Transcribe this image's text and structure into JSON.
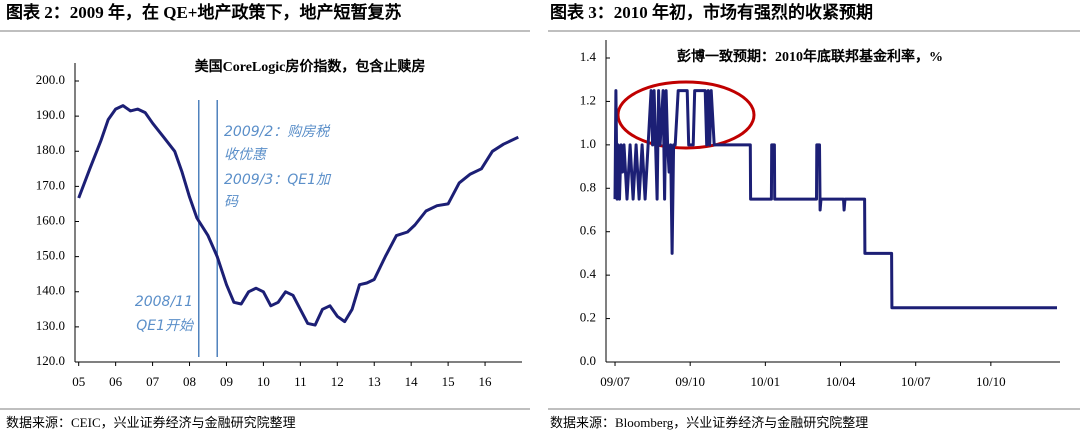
{
  "chart_data": [
    {
      "type": "line",
      "header": "图表 2：2009 年，在 QE+地产政策下，地产短暂复苏",
      "title": "美国CoreLogic房价指数，包含止赎房",
      "source": "数据来源：CEIC，兴业证券经济与金融研究院整理",
      "color": "#1c1f75",
      "x": [
        2005.0,
        2005.3,
        2005.6,
        2005.8,
        2006.0,
        2006.2,
        2006.4,
        2006.6,
        2006.8,
        2007.0,
        2007.3,
        2007.6,
        2007.8,
        2008.0,
        2008.2,
        2008.5,
        2008.75,
        2009.0,
        2009.2,
        2009.4,
        2009.6,
        2009.8,
        2010.0,
        2010.2,
        2010.4,
        2010.6,
        2010.8,
        2011.0,
        2011.2,
        2011.4,
        2011.6,
        2011.8,
        2012.0,
        2012.2,
        2012.4,
        2012.6,
        2012.8,
        2013.0,
        2013.3,
        2013.6,
        2013.9,
        2014.1,
        2014.4,
        2014.7,
        2015.0,
        2015.3,
        2015.6,
        2015.9,
        2016.2,
        2016.5,
        2016.9
      ],
      "values": [
        166.7,
        175,
        183,
        189,
        192,
        193,
        191.5,
        192,
        191,
        188,
        184,
        180,
        174,
        167,
        161,
        156,
        150,
        142,
        137,
        136.5,
        140,
        141,
        140,
        136,
        137,
        140,
        139,
        135,
        131,
        130.5,
        135,
        136,
        133,
        131.5,
        135,
        142,
        142.5,
        143.5,
        150,
        156,
        157,
        159,
        163,
        164.5,
        165,
        171,
        173.5,
        175,
        180,
        182,
        184
      ],
      "xlim": [
        2004.9,
        2017
      ],
      "xticks": [
        {
          "value": 2005,
          "label": "05"
        },
        {
          "value": 2006,
          "label": "06"
        },
        {
          "value": 2007,
          "label": "07"
        },
        {
          "value": 2008,
          "label": "08"
        },
        {
          "value": 2009,
          "label": "09"
        },
        {
          "value": 2010,
          "label": "10"
        },
        {
          "value": 2011,
          "label": "11"
        },
        {
          "value": 2012,
          "label": "12"
        },
        {
          "value": 2013,
          "label": "13"
        },
        {
          "value": 2014,
          "label": "14"
        },
        {
          "value": 2015,
          "label": "15"
        },
        {
          "value": 2016,
          "label": "16"
        }
      ],
      "ylim": [
        120,
        200
      ],
      "yticks": [
        {
          "value": 120,
          "label": "120.0"
        },
        {
          "value": 130,
          "label": "130.0"
        },
        {
          "value": 140,
          "label": "140.0"
        },
        {
          "value": 150,
          "label": "150.0"
        },
        {
          "value": 160,
          "label": "160.0"
        },
        {
          "value": 170,
          "label": "170.0"
        },
        {
          "value": 180,
          "label": "180.0"
        },
        {
          "value": 190,
          "label": "190.0"
        },
        {
          "value": 200,
          "label": "200.0"
        }
      ],
      "vlines": [
        2008.25,
        2008.75
      ],
      "annotations": [
        "2009/2：购房税",
        "收优惠",
        "2009/3：QE1加",
        "码",
        "2008/11",
        "QE1开始"
      ]
    },
    {
      "type": "line",
      "header": "图表 3：2010 年初，市场有强烈的收紧预期",
      "title": "彭博一致预期：2010年底联邦基金利率，%",
      "source": "数据来源：Bloomberg，兴业证券经济与金融研究院整理",
      "color": "#1c1f75",
      "x": [
        2009.5,
        2009.503,
        2009.507,
        2009.51,
        2009.515,
        2009.52,
        2009.525,
        2009.53,
        2009.54,
        2009.55,
        2009.56,
        2009.57,
        2009.58,
        2009.59,
        2009.6,
        2009.61,
        2009.62,
        2009.625,
        2009.63,
        2009.64,
        2009.645,
        2009.65,
        2009.66,
        2009.665,
        2009.67,
        2009.675,
        2009.68,
        2009.685,
        2009.69,
        2009.695,
        2009.7,
        2009.71,
        2009.74,
        2009.745,
        2009.76,
        2009.765,
        2009.8,
        2009.805,
        2009.81,
        2009.815,
        2009.82,
        2009.83,
        2009.95,
        2009.951,
        2010.02,
        2010.021,
        2010.03,
        2010.031,
        2010.17,
        2010.171,
        2010.18,
        2010.182,
        2010.185,
        2010.19,
        2010.26,
        2010.262,
        2010.265,
        2010.33,
        2010.331,
        2010.42,
        2010.421,
        2010.97
      ],
      "values": [
        0.75,
        1.25,
        0.75,
        1.0,
        0.75,
        1.0,
        0.875,
        1.0,
        0.75,
        1.0,
        0.75,
        1.0,
        0.75,
        1.0,
        0.75,
        1.0,
        1.25,
        1.0,
        1.25,
        0.75,
        1.25,
        1.0,
        1.25,
        0.75,
        1.25,
        1.0,
        0.875,
        1.0,
        0.5,
        1.0,
        1.0,
        1.25,
        1.25,
        1.0,
        1.0,
        1.25,
        1.25,
        1.0,
        1.25,
        1.0,
        1.25,
        1.0,
        1.0,
        0.75,
        0.75,
        1.0,
        1.0,
        0.75,
        0.75,
        1.0,
        1.0,
        0.7,
        0.75,
        0.75,
        0.75,
        0.7,
        0.75,
        0.75,
        0.5,
        0.5,
        0.25,
        0.25
      ],
      "xlim": [
        2009.47,
        2010.98
      ],
      "xticks": [
        {
          "value": 2009.5,
          "label": "09/07"
        },
        {
          "value": 2009.75,
          "label": "09/10"
        },
        {
          "value": 2010.0,
          "label": "10/01"
        },
        {
          "value": 2010.25,
          "label": "10/04"
        },
        {
          "value": 2010.5,
          "label": "10/07"
        },
        {
          "value": 2010.75,
          "label": "10/10"
        }
      ],
      "ylim": [
        0,
        1.4
      ],
      "yticks": [
        {
          "value": 0,
          "label": "0.0"
        },
        0.2,
        0.4,
        0.6,
        0.8,
        {
          "value": 1,
          "label": "1.0"
        },
        1.2,
        1.4
      ]
    }
  ]
}
